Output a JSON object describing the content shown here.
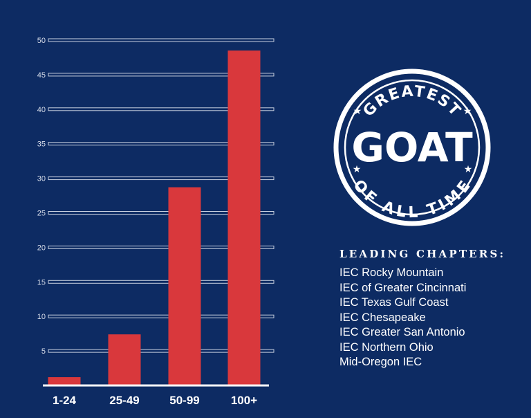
{
  "chart_data": {
    "type": "bar",
    "categories": [
      "1-24",
      "25-49",
      "50-99",
      "100+"
    ],
    "values": [
      1.2,
      7.4,
      28.7,
      48.5
    ],
    "title": "",
    "xlabel": "",
    "ylabel": "",
    "ylim": [
      0,
      50
    ],
    "yticks": [
      5,
      10,
      15,
      20,
      25,
      30,
      35,
      40,
      45,
      50
    ],
    "grid": true,
    "bar_color": "#d9383c",
    "background": "#0d2b63"
  },
  "badge": {
    "top_arc": "GREATEST",
    "center": "GOAT",
    "bottom_arc": "OF ALL TIME"
  },
  "chapters": {
    "heading": "LEADING CHAPTERS:",
    "items": [
      "IEC Rocky Mountain",
      "IEC of Greater Cincinnati",
      "IEC Texas Gulf Coast",
      "IEC Chesapeake",
      "IEC Greater San Antonio",
      "IEC Northern Ohio",
      "Mid-Oregon IEC"
    ]
  }
}
